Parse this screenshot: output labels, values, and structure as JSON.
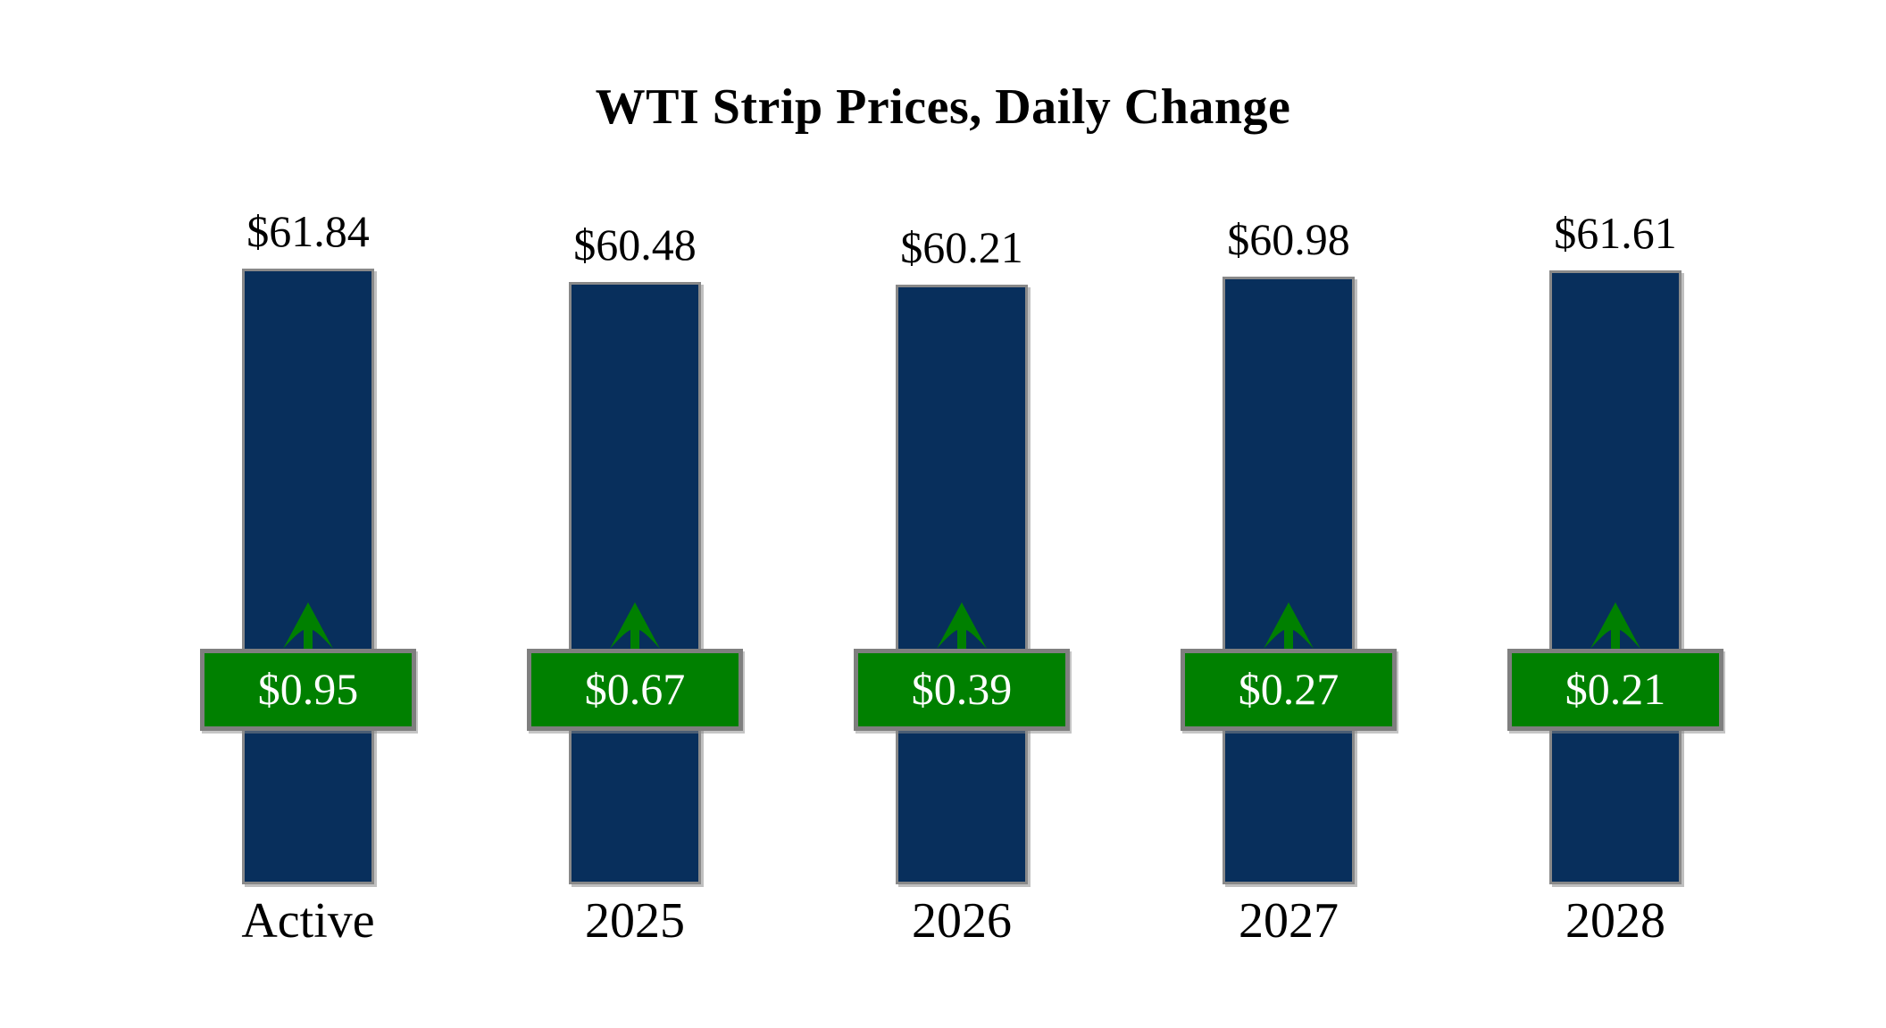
{
  "chart_data": {
    "type": "bar",
    "title": "WTI Strip Prices, Daily Change",
    "categories": [
      "Active",
      "2025",
      "2026",
      "2027",
      "2028"
    ],
    "series": [
      {
        "name": "WTI Strip Price",
        "unit": "$/bbl",
        "values": [
          61.84,
          60.48,
          60.21,
          60.98,
          61.61
        ],
        "labels": [
          "$61.84",
          "$60.48",
          "$60.21",
          "$60.98",
          "$61.61"
        ]
      },
      {
        "name": "Daily Change",
        "unit": "$/bbl",
        "values": [
          0.95,
          0.67,
          0.39,
          0.27,
          0.21
        ],
        "labels": [
          "$0.95",
          "$0.67",
          "$0.39",
          "$0.27",
          "$0.21"
        ],
        "directions": [
          "up",
          "up",
          "up",
          "up",
          "up"
        ]
      }
    ],
    "baseline": 0,
    "value_axis_visible": false,
    "grid": false,
    "legend": "none",
    "colors": {
      "bar_fill": "#082F5C",
      "bar_border": "#898989",
      "change_positive_fill": "#008000",
      "change_border": "#7f7f7f",
      "change_text": "#ffffff",
      "arrow": "#008000",
      "label_text": "#000000",
      "background": "#ffffff"
    }
  }
}
